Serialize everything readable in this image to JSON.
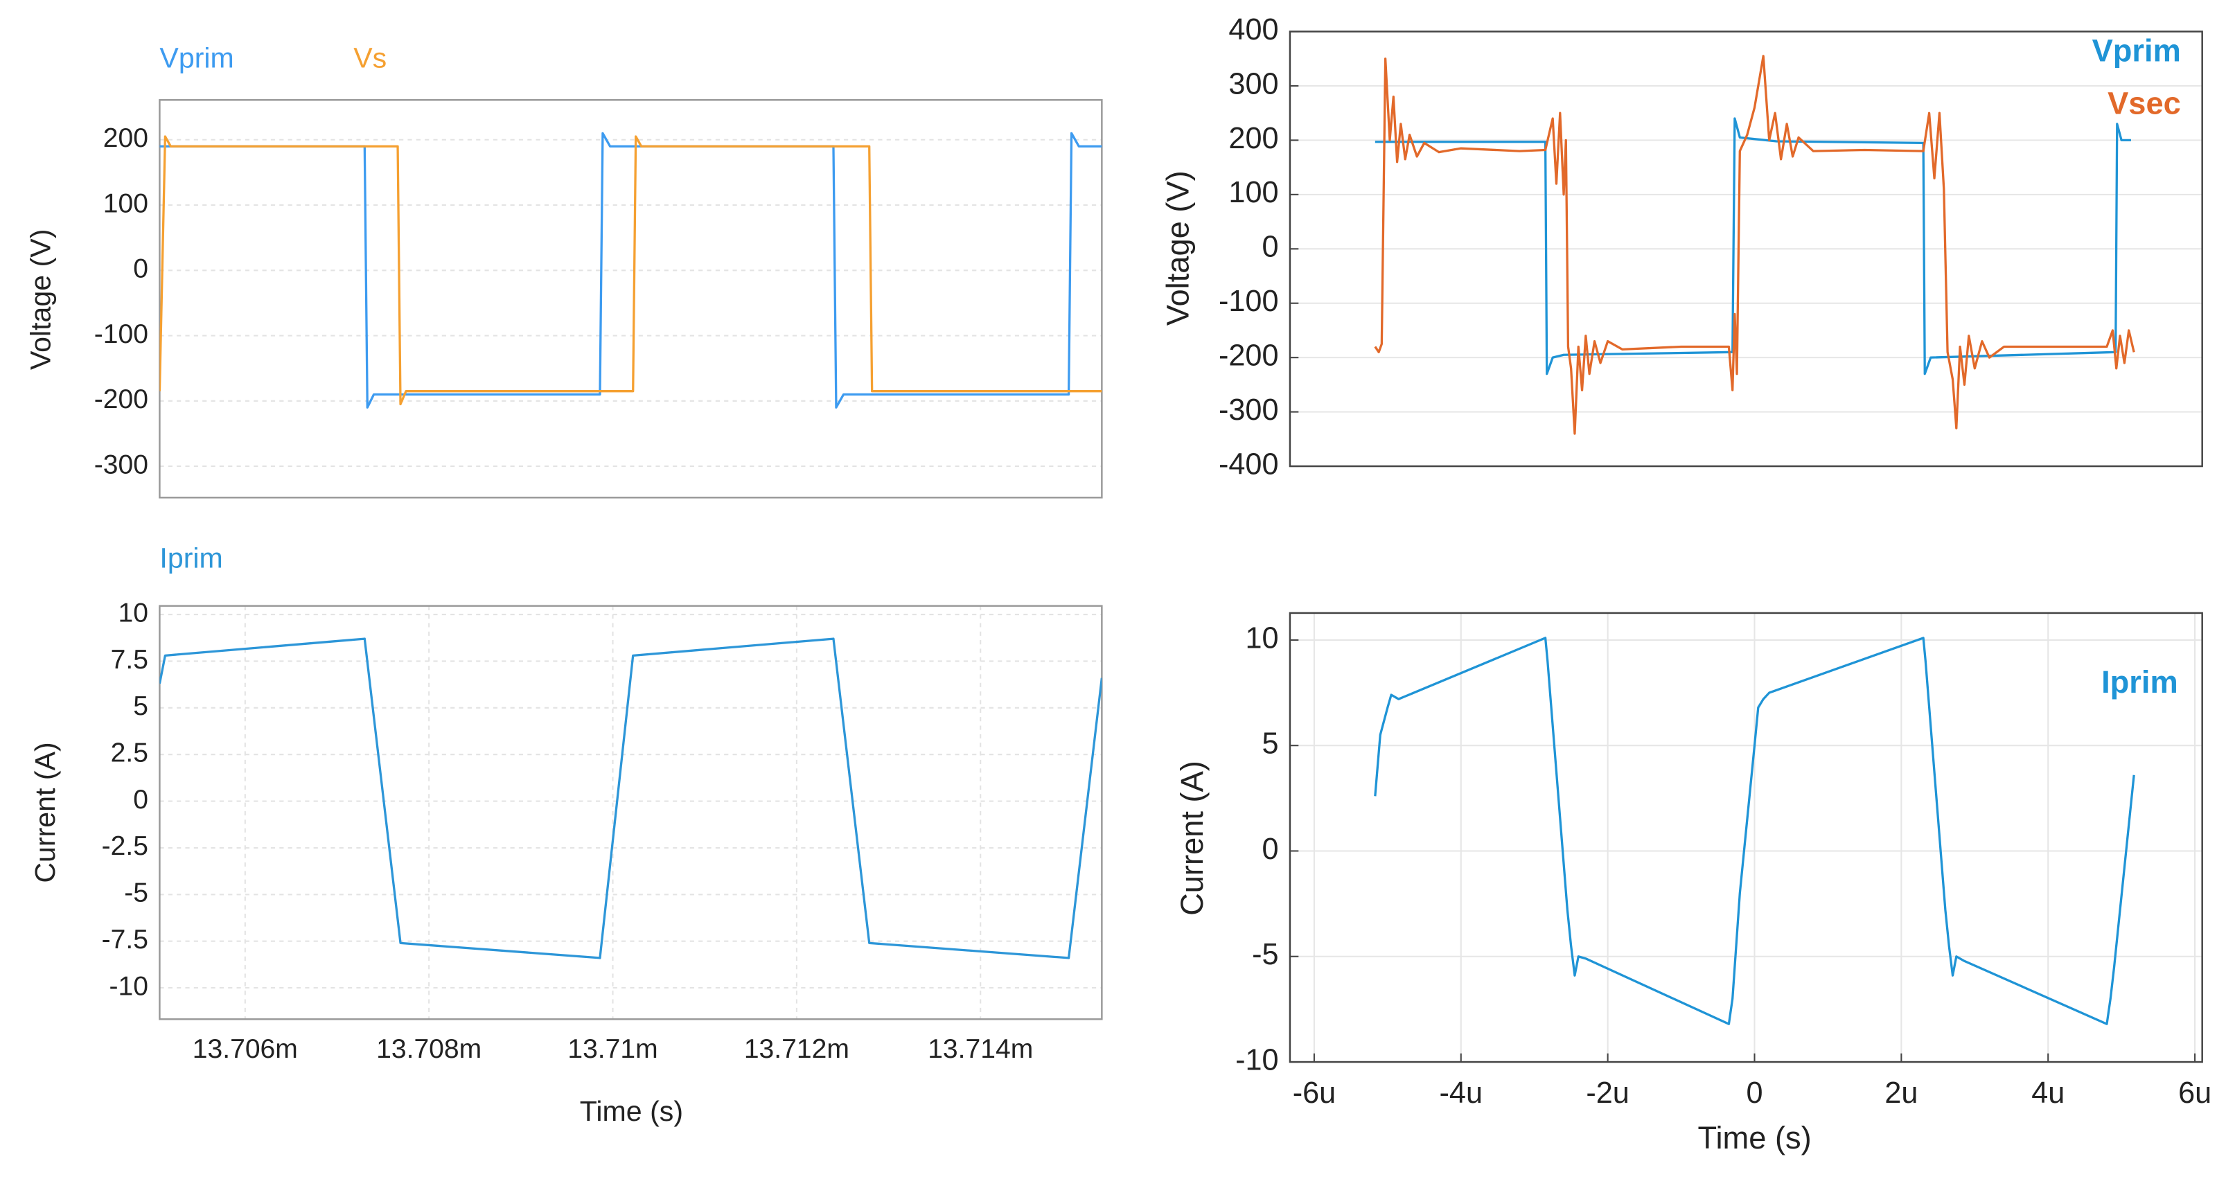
{
  "chart_data": [
    {
      "type": "line",
      "ylabel": "Voltage (V)",
      "ylim": [
        -348,
        261
      ],
      "xlim": [
        0.01370507,
        0.01371532
      ],
      "yticks": [
        -300,
        -200,
        -100,
        0,
        100,
        200
      ],
      "grid": true,
      "legend": "top-left",
      "series": [
        {
          "name": "Vprim",
          "color": "#3d9bf0",
          "x": [
            0.01370507,
            0.0137073,
            0.01370733,
            0.0137074,
            0.01370986,
            0.01370989,
            0.01370997,
            0.0137124,
            0.01371243,
            0.01371251,
            0.01371496,
            0.01371499,
            0.01371507,
            0.01371532
          ],
          "values": [
            190,
            190,
            -210,
            -190,
            -190,
            210,
            190,
            190,
            -210,
            -190,
            -190,
            210,
            190,
            190
          ]
        },
        {
          "name": "Vs",
          "color": "#f5a031",
          "x": [
            0.01370507,
            0.01370513,
            0.01370519,
            0.01370766,
            0.01370769,
            0.01370775,
            0.01371022,
            0.01371025,
            0.01371031,
            0.01371279,
            0.01371282,
            0.01371532
          ],
          "values": [
            -185,
            205,
            190,
            190,
            -205,
            -185,
            -185,
            205,
            190,
            190,
            -185,
            -185
          ]
        }
      ]
    },
    {
      "type": "line",
      "ylabel": "Voltage (V)",
      "ylim": [
        -400,
        400
      ],
      "xlim": [
        -6.33e-06,
        6.1e-06
      ],
      "yticks": [
        -400,
        -300,
        -200,
        -100,
        0,
        100,
        200,
        300,
        400
      ],
      "grid": true,
      "legend": "top-right",
      "series": [
        {
          "name": "Vprim",
          "color": "#1f94d6",
          "x": [
            -5.17e-06,
            -2.85e-06,
            -2.83e-06,
            -2.75e-06,
            -2.6e-06,
            -3e-07,
            -2.7e-07,
            -2e-07,
            3e-07,
            2.3e-06,
            2.32e-06,
            2.4e-06,
            4.92e-06,
            4.94e-06,
            5e-06,
            5.13e-06
          ],
          "values": [
            197,
            197,
            -230,
            -200,
            -195,
            -190,
            240,
            205,
            198,
            195,
            -230,
            -200,
            -190,
            230,
            200,
            200
          ]
        },
        {
          "name": "Vsec",
          "color": "#e2692a",
          "x": [
            -5.17e-06,
            -5.12e-06,
            -5.08e-06,
            -5.03e-06,
            -4.97e-06,
            -4.92e-06,
            -4.87e-06,
            -4.82e-06,
            -4.76e-06,
            -4.7e-06,
            -4.6e-06,
            -4.5e-06,
            -4.3e-06,
            -4e-06,
            -3.2e-06,
            -2.85e-06,
            -2.75e-06,
            -2.7e-06,
            -2.65e-06,
            -2.6e-06,
            -2.57e-06,
            -2.54e-06,
            -2.5e-06,
            -2.45e-06,
            -2.4e-06,
            -2.35e-06,
            -2.3e-06,
            -2.25e-06,
            -2.18e-06,
            -2.1e-06,
            -2e-06,
            -1.8e-06,
            -1e-06,
            -3.5e-07,
            -3e-07,
            -2.7e-07,
            -2.4e-07,
            -2e-07,
            -1e-07,
            0,
            1.2e-07,
            2e-07,
            2.8e-07,
            3.6e-07,
            4.4e-07,
            5.2e-07,
            6e-07,
            8e-07,
            1.5e-06,
            2.3e-06,
            2.38e-06,
            2.45e-06,
            2.52e-06,
            2.58e-06,
            2.63e-06,
            2.7e-06,
            2.75e-06,
            2.8e-06,
            2.86e-06,
            2.92e-06,
            3e-06,
            3.1e-06,
            3.2e-06,
            3.4e-06,
            4.8e-06,
            4.88e-06,
            4.93e-06,
            4.98e-06,
            5.04e-06,
            5.1e-06,
            5.17e-06
          ],
          "values": [
            -180,
            -190,
            -175,
            350,
            200,
            280,
            160,
            230,
            165,
            210,
            170,
            195,
            178,
            185,
            180,
            182,
            240,
            120,
            250,
            100,
            200,
            -180,
            -220,
            -340,
            -180,
            -260,
            -160,
            -230,
            -170,
            -210,
            -170,
            -185,
            -180,
            -180,
            -260,
            -120,
            -230,
            180,
            210,
            260,
            355,
            200,
            250,
            165,
            230,
            170,
            205,
            180,
            182,
            180,
            250,
            130,
            250,
            110,
            -190,
            -240,
            -330,
            -180,
            -250,
            -160,
            -220,
            -170,
            -200,
            -180,
            -180,
            -150,
            -220,
            -160,
            -210,
            -150,
            -190
          ]
        }
      ]
    },
    {
      "type": "line",
      "ylabel": "Current (A)",
      "xlabel": "Time (s)",
      "ylim": [
        -11.68,
        10.46
      ],
      "xlim": [
        0.01370507,
        0.01371532
      ],
      "yticks": [
        -10,
        -7.5,
        -5,
        -2.5,
        0,
        2.5,
        5,
        7.5,
        10
      ],
      "xticks": [
        {
          "value": 0.013706,
          "label": "13.706m"
        },
        {
          "value": 0.013708,
          "label": "13.708m"
        },
        {
          "value": 0.01371,
          "label": "13.71m"
        },
        {
          "value": 0.013712,
          "label": "13.712m"
        },
        {
          "value": 0.013714,
          "label": "13.714m"
        }
      ],
      "grid": true,
      "legend": "top-left",
      "series": [
        {
          "name": "Iprim",
          "color": "#2d96d8",
          "x": [
            0.01370507,
            0.01370513,
            0.0137073,
            0.01370769,
            0.01370986,
            0.01371022,
            0.0137124,
            0.01371279,
            0.01371496,
            0.01371532
          ],
          "values": [
            6.3,
            7.8,
            8.7,
            -7.6,
            -8.4,
            7.8,
            8.7,
            -7.6,
            -8.4,
            6.6
          ]
        }
      ]
    },
    {
      "type": "line",
      "ylabel": "Current (A)",
      "xlabel": "Time (s)",
      "ylim": [
        -10,
        11.28
      ],
      "xlim": [
        -6.33e-06,
        6.1e-06
      ],
      "yticks": [
        -10,
        -5,
        0,
        5,
        10
      ],
      "xticks": [
        {
          "value": -6e-06,
          "label": "-6u"
        },
        {
          "value": -4e-06,
          "label": "-4u"
        },
        {
          "value": -2e-06,
          "label": "-2u"
        },
        0,
        {
          "value": 2e-06,
          "label": "2u"
        },
        {
          "value": 4e-06,
          "label": "4u"
        },
        {
          "value": 6e-06,
          "label": "6u"
        }
      ],
      "grid": true,
      "legend": "top-right",
      "series": [
        {
          "name": "Iprim",
          "color": "#1f94d6",
          "x": [
            -5.17e-06,
            -5.1e-06,
            -5e-06,
            -4.95e-06,
            -4.85e-06,
            -2.85e-06,
            -2.82e-06,
            -2.55e-06,
            -2.5e-06,
            -2.45e-06,
            -2.4e-06,
            -2.3e-06,
            -3.5e-07,
            -3e-07,
            -2e-07,
            0,
            5e-08,
            1.2e-07,
            2e-07,
            2.3e-06,
            2.33e-06,
            2.6e-06,
            2.65e-06,
            2.7e-06,
            2.75e-06,
            2.85e-06,
            4.8e-06,
            4.85e-06,
            4.9e-06,
            5.17e-06
          ],
          "values": [
            2.6,
            5.5,
            6.8,
            7.4,
            7.2,
            10.1,
            9,
            -2.8,
            -4.5,
            -5.9,
            -5,
            -5.1,
            -8.2,
            -7,
            -2,
            5,
            6.8,
            7.2,
            7.5,
            10.1,
            9,
            -2.8,
            -4.5,
            -5.9,
            -5,
            -5.2,
            -8.2,
            -7,
            -5.5,
            3.6
          ]
        }
      ]
    }
  ]
}
